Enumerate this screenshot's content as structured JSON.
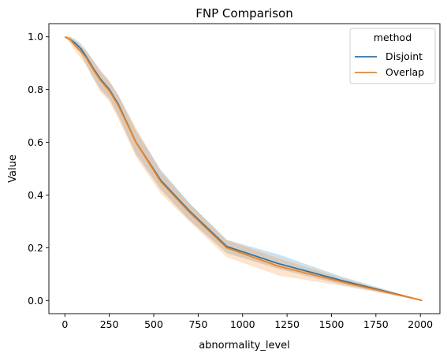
{
  "chart_data": {
    "type": "line",
    "title": "FNP Comparison",
    "xlabel": "abnormality_level",
    "ylabel": "Value",
    "xlim": [
      -90,
      2110
    ],
    "ylim": [
      -0.05,
      1.05
    ],
    "x_ticks": [
      0,
      250,
      500,
      750,
      1000,
      1250,
      1500,
      1750,
      2000
    ],
    "x_tick_labels": [
      "0",
      "250",
      "500",
      "750",
      "1000",
      "1250",
      "1500",
      "1750",
      "2000"
    ],
    "y_ticks": [
      0.0,
      0.2,
      0.4,
      0.6,
      0.8,
      1.0
    ],
    "y_tick_labels": [
      "0.0",
      "0.2",
      "0.4",
      "0.6",
      "0.8",
      "1.0"
    ],
    "grid": false,
    "legend": {
      "title": "method",
      "placement": "top-right"
    },
    "x": [
      0,
      30,
      60,
      90,
      120,
      160,
      200,
      250,
      300,
      400,
      540,
      700,
      910,
      1200,
      1560,
      2010
    ],
    "series": [
      {
        "name": "Disjoint",
        "color": "#1f77b4",
        "values": [
          1.0,
          0.99,
          0.975,
          0.955,
          0.925,
          0.88,
          0.84,
          0.8,
          0.745,
          0.6,
          0.455,
          0.34,
          0.205,
          0.14,
          0.075,
          0.0
        ],
        "ci_low": [
          1.0,
          0.98,
          0.96,
          0.935,
          0.895,
          0.845,
          0.8,
          0.765,
          0.7,
          0.555,
          0.42,
          0.305,
          0.18,
          0.12,
          0.06,
          0.0
        ],
        "ci_high": [
          1.0,
          1.0,
          0.99,
          0.975,
          0.95,
          0.91,
          0.87,
          0.83,
          0.78,
          0.645,
          0.495,
          0.37,
          0.23,
          0.175,
          0.09,
          0.0
        ]
      },
      {
        "name": "Overlap",
        "color": "#ff7f0e",
        "values": [
          1.0,
          0.99,
          0.965,
          0.945,
          0.92,
          0.875,
          0.835,
          0.795,
          0.74,
          0.6,
          0.45,
          0.335,
          0.2,
          0.13,
          0.07,
          0.0
        ],
        "ci_low": [
          1.0,
          0.975,
          0.945,
          0.92,
          0.89,
          0.84,
          0.79,
          0.755,
          0.69,
          0.545,
          0.405,
          0.3,
          0.165,
          0.095,
          0.055,
          0.0
        ],
        "ci_high": [
          1.0,
          1.0,
          0.985,
          0.965,
          0.945,
          0.91,
          0.875,
          0.835,
          0.78,
          0.655,
          0.49,
          0.37,
          0.23,
          0.16,
          0.085,
          0.0
        ]
      }
    ]
  }
}
